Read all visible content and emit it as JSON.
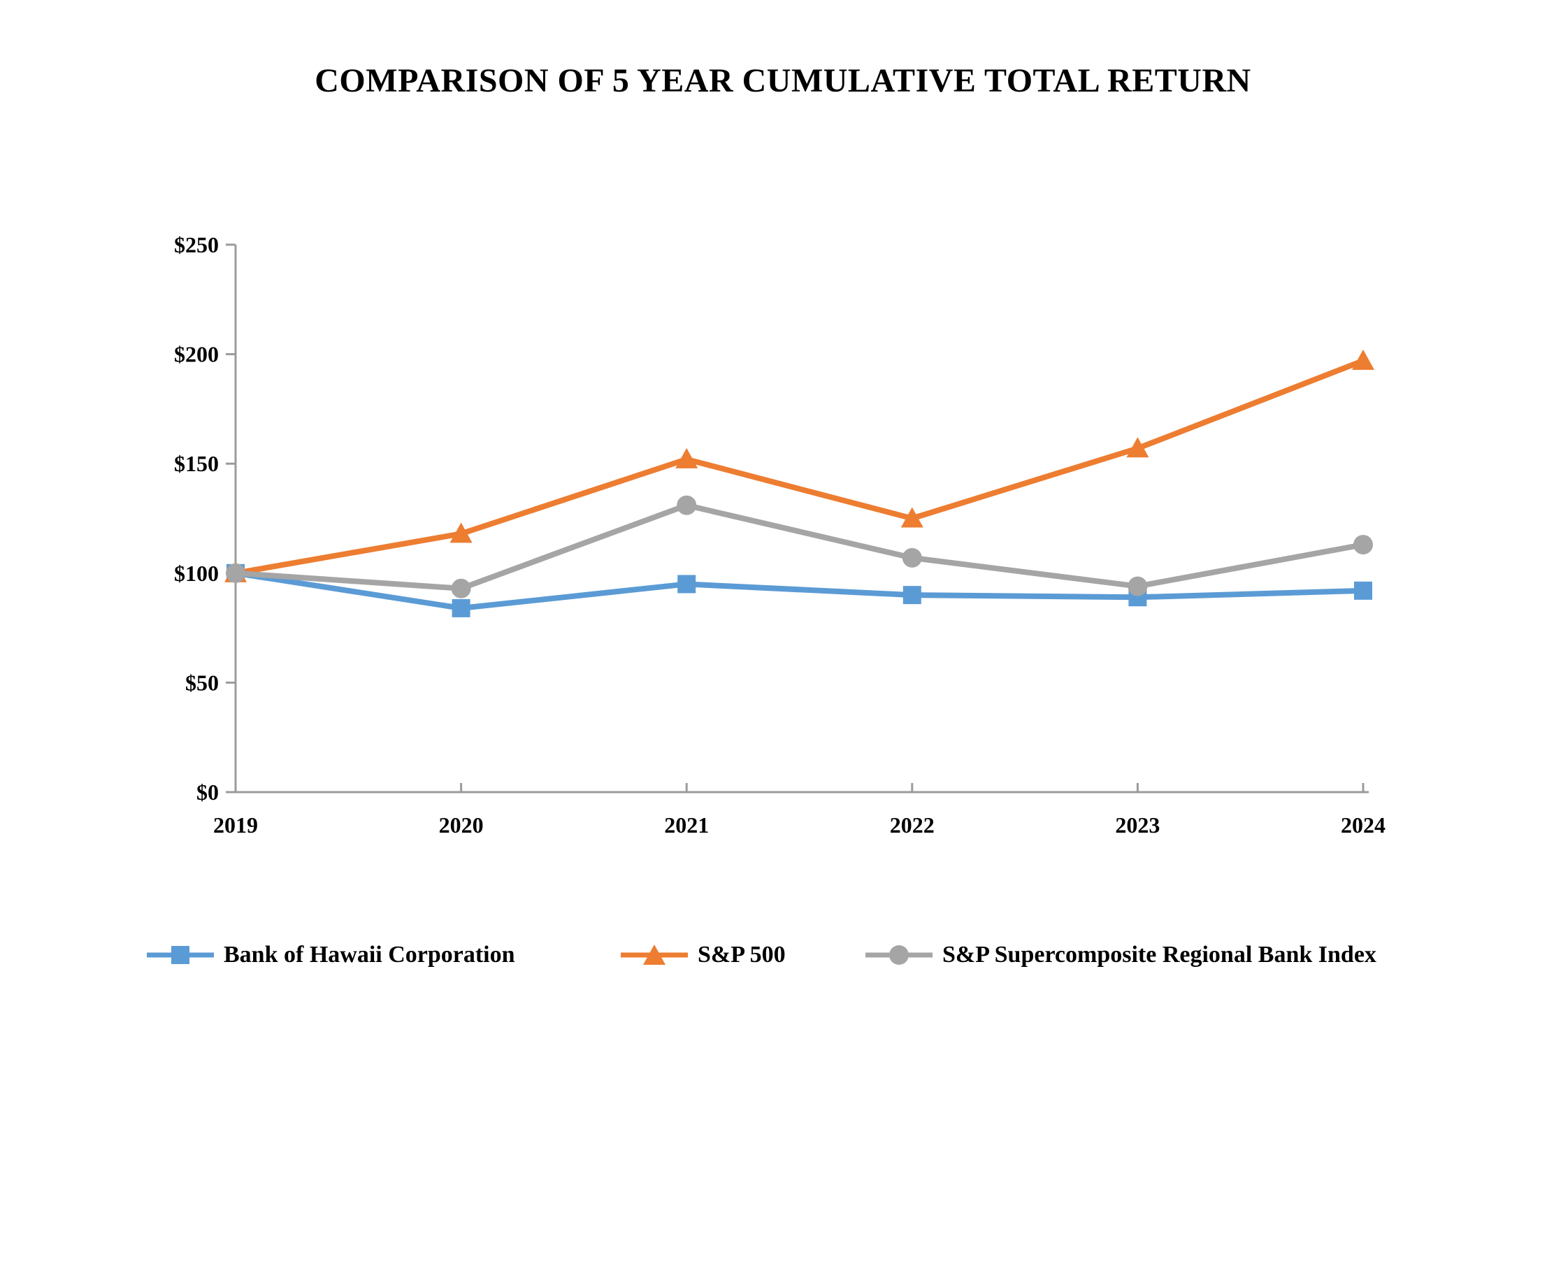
{
  "title": "COMPARISON OF 5 YEAR CUMULATIVE TOTAL RETURN",
  "chart_data": {
    "type": "line",
    "title": "COMPARISON OF 5 YEAR CUMULATIVE TOTAL RETURN",
    "categories": [
      "2019",
      "2020",
      "2021",
      "2022",
      "2023",
      "2024"
    ],
    "series": [
      {
        "name": "Bank of Hawaii Corporation",
        "marker": "square",
        "color": "#5B9BD5",
        "values": [
          100,
          84,
          95,
          90,
          89,
          92
        ]
      },
      {
        "name": "S&P 500",
        "marker": "triangle",
        "color": "#ED7D31",
        "values": [
          100,
          118,
          152,
          125,
          157,
          197
        ]
      },
      {
        "name": "S&P Supercomposite Regional Bank Index",
        "marker": "circle",
        "color": "#A5A5A5",
        "values": [
          100,
          93,
          131,
          107,
          94,
          113
        ]
      }
    ],
    "y_ticks": [
      "$0",
      "$50",
      "$100",
      "$150",
      "$200",
      "$250"
    ],
    "y_tick_values": [
      0,
      50,
      100,
      150,
      200,
      250
    ],
    "ylim": [
      0,
      250
    ],
    "xlabel": "",
    "ylabel": "",
    "grid": false,
    "axis_color": "#9B9B9B",
    "legend_position": "bottom"
  }
}
